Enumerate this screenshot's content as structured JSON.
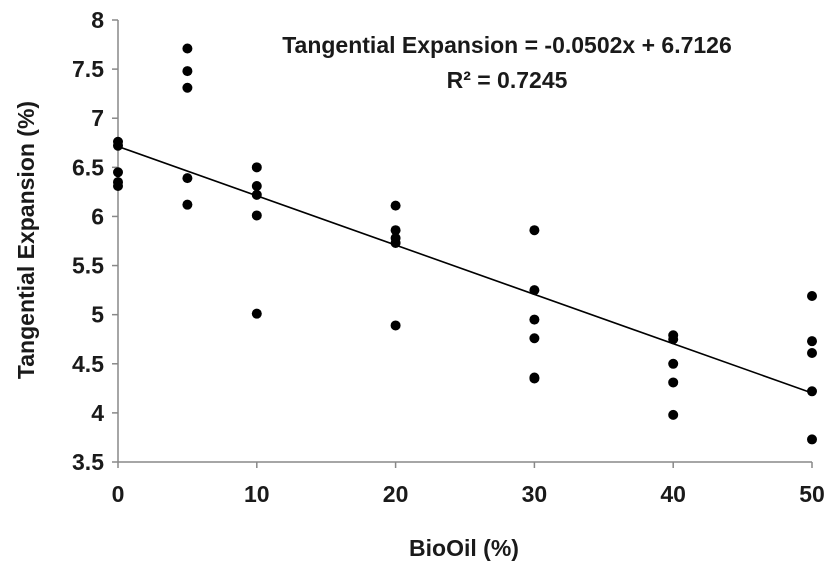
{
  "chart_data": {
    "type": "scatter",
    "title": "",
    "xlabel": "BioOil (%)",
    "ylabel": "Tangential Expansion (%)",
    "xlim": [
      0,
      50
    ],
    "ylim": [
      3.5,
      8
    ],
    "x_ticks": [
      "0",
      "10",
      "20",
      "30",
      "40",
      "50"
    ],
    "y_ticks": [
      "3.5",
      "4",
      "4.5",
      "5",
      "5.5",
      "6",
      "6.5",
      "7",
      "7.5",
      "8"
    ],
    "grid": false,
    "legend": "none",
    "series": [
      {
        "color": "#000000",
        "points": [
          {
            "x": 0,
            "y": 6.76
          },
          {
            "x": 0,
            "y": 6.72
          },
          {
            "x": 0,
            "y": 6.45
          },
          {
            "x": 0,
            "y": 6.35
          },
          {
            "x": 0,
            "y": 6.31
          },
          {
            "x": 5,
            "y": 7.71
          },
          {
            "x": 5,
            "y": 7.48
          },
          {
            "x": 5,
            "y": 7.31
          },
          {
            "x": 5,
            "y": 6.39
          },
          {
            "x": 5,
            "y": 6.12
          },
          {
            "x": 10,
            "y": 6.5
          },
          {
            "x": 10,
            "y": 6.31
          },
          {
            "x": 10,
            "y": 6.22
          },
          {
            "x": 10,
            "y": 6.01
          },
          {
            "x": 10,
            "y": 5.01
          },
          {
            "x": 20,
            "y": 6.11
          },
          {
            "x": 20,
            "y": 5.86
          },
          {
            "x": 20,
            "y": 5.78
          },
          {
            "x": 20,
            "y": 5.73
          },
          {
            "x": 20,
            "y": 4.89
          },
          {
            "x": 30,
            "y": 5.86
          },
          {
            "x": 30,
            "y": 5.25
          },
          {
            "x": 30,
            "y": 4.95
          },
          {
            "x": 30,
            "y": 4.76
          },
          {
            "x": 30,
            "y": 4.36
          },
          {
            "x": 30,
            "y": 4.35
          },
          {
            "x": 40,
            "y": 4.79
          },
          {
            "x": 40,
            "y": 4.75
          },
          {
            "x": 40,
            "y": 4.5
          },
          {
            "x": 40,
            "y": 4.31
          },
          {
            "x": 40,
            "y": 3.98
          },
          {
            "x": 50,
            "y": 5.19
          },
          {
            "x": 50,
            "y": 4.73
          },
          {
            "x": 50,
            "y": 4.61
          },
          {
            "x": 50,
            "y": 4.22
          },
          {
            "x": 50,
            "y": 3.73
          }
        ]
      }
    ],
    "trendline": {
      "type": "linear",
      "slope": -0.0502,
      "intercept": 6.7126,
      "x_range": [
        0,
        50
      ],
      "color": "#000000"
    },
    "annotations": [
      "Tangential Expansion = -0.0502x + 6.7126",
      "R² = 0.7245"
    ]
  }
}
